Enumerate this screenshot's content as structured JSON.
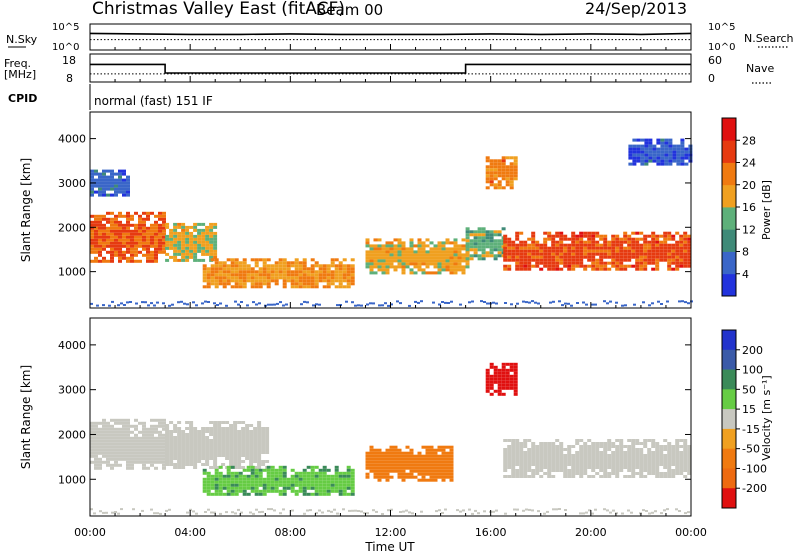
{
  "header": {
    "title": "Christmas Valley East (fitACF)",
    "beam": "Beam 00",
    "date": "24/Sep/2013"
  },
  "colors": {
    "power": [
      "#2233dd",
      "#3a66c8",
      "#3f8a78",
      "#5eb07a",
      "#f0a020",
      "#f07a10",
      "#e63a10",
      "#e01010"
    ],
    "velocity": [
      "#2233cc",
      "#3a5aa8",
      "#3a8a58",
      "#66cc44",
      "#c8c8c0",
      "#f0a020",
      "#f07a10",
      "#ee6a10",
      "#e01010"
    ]
  },
  "chart_data": [
    {
      "type": "line",
      "panel": "sky-noise-search-noise",
      "left_label": "N.Sky",
      "right_label": "N.Search",
      "left_ticks": [
        "10^5",
        "10^0"
      ],
      "right_ticks": [
        "10^5",
        "10^0"
      ],
      "x": [
        0,
        2,
        4,
        6,
        8,
        10,
        12,
        14,
        16,
        18,
        20,
        22,
        24
      ],
      "series": [
        {
          "values": [
            3.2,
            3.1,
            3.0,
            3.0,
            3.1,
            3.0,
            3.0,
            3.0,
            3.1,
            3.0,
            3.1,
            3.0,
            3.2
          ]
        },
        {
          "values": [
            2.0,
            2.0,
            2.0,
            2.0,
            2.0,
            2.0,
            2.0,
            2.0,
            2.0,
            2.0,
            2.0,
            2.0,
            2.0
          ]
        }
      ]
    },
    {
      "type": "line",
      "panel": "frequency-nave",
      "left_label": "Freq. [MHz]",
      "right_label": "Nave",
      "left_ticks": [
        "18",
        "8"
      ],
      "right_ticks": [
        "60",
        "0"
      ],
      "freq_steps": [
        [
          0,
          14.3
        ],
        [
          3,
          14.3
        ],
        [
          3,
          11.2
        ],
        [
          15,
          11.2
        ],
        [
          15,
          14.3
        ],
        [
          24,
          14.3
        ]
      ],
      "nave_level": 10.9
    },
    {
      "type": "table",
      "panel": "cpid",
      "label": "CPID",
      "program": "normal (fast) 151 IF"
    },
    {
      "type": "heatmap",
      "panel": "power",
      "ylabel": "Slant Range [km]",
      "ylim": [
        180,
        4600
      ],
      "y_ticks": [
        1000,
        2000,
        3000,
        4000
      ],
      "xlim": [
        0,
        24
      ],
      "colorbar_label": "Power [dB]",
      "colorbar_ticks": [
        4,
        8,
        12,
        16,
        20,
        24,
        28
      ],
      "colorbar_range": [
        0,
        32
      ],
      "regions": [
        {
          "t0": 0.0,
          "t1": 3.0,
          "r0": 1250,
          "r1": 2350,
          "value": 24
        },
        {
          "t0": 3.0,
          "t1": 5.0,
          "r0": 1250,
          "r1": 2100,
          "value": 17
        },
        {
          "t0": 4.5,
          "t1": 10.5,
          "r0": 650,
          "r1": 1300,
          "value": 20
        },
        {
          "t0": 11.0,
          "t1": 15.0,
          "r0": 1000,
          "r1": 1750,
          "value": 18
        },
        {
          "t0": 15.0,
          "t1": 16.5,
          "r0": 1300,
          "r1": 2000,
          "value": 14
        },
        {
          "t0": 15.8,
          "t1": 17.0,
          "r0": 2900,
          "r1": 3600,
          "value": 21
        },
        {
          "t0": 16.5,
          "t1": 24.0,
          "r0": 1050,
          "r1": 1900,
          "value": 25
        },
        {
          "t0": 0.0,
          "t1": 1.5,
          "r0": 2700,
          "r1": 3300,
          "value": 6
        },
        {
          "t0": 21.5,
          "t1": 24.0,
          "r0": 3400,
          "r1": 4000,
          "value": 5
        }
      ]
    },
    {
      "type": "heatmap",
      "panel": "velocity",
      "ylabel": "Slant Range [km]",
      "ylim": [
        180,
        4600
      ],
      "y_ticks": [
        1000,
        2000,
        3000,
        4000
      ],
      "xlim": [
        0,
        24
      ],
      "x_ticks": [
        "00:00",
        "04:00",
        "08:00",
        "12:00",
        "16:00",
        "20:00",
        "00:00"
      ],
      "xlabel": "Time UT",
      "colorbar_label": "Velocity [m s⁻¹]",
      "colorbar_ticks": [
        200,
        100,
        50,
        15,
        -15,
        -50,
        -100,
        -200
      ],
      "regions": [
        {
          "t0": 0.0,
          "t1": 3.0,
          "r0": 1250,
          "r1": 2350,
          "value": 0
        },
        {
          "t0": 3.0,
          "t1": 7.0,
          "r0": 1250,
          "r1": 2300,
          "value": 0
        },
        {
          "t0": 4.5,
          "t1": 10.5,
          "r0": 650,
          "r1": 1300,
          "value": 30
        },
        {
          "t0": 11.0,
          "t1": 14.5,
          "r0": 1000,
          "r1": 1750,
          "value": -60
        },
        {
          "t0": 15.8,
          "t1": 17.0,
          "r0": 2900,
          "r1": 3600,
          "value": -200
        },
        {
          "t0": 16.5,
          "t1": 24.0,
          "r0": 1050,
          "r1": 1900,
          "value": 0
        }
      ]
    }
  ]
}
